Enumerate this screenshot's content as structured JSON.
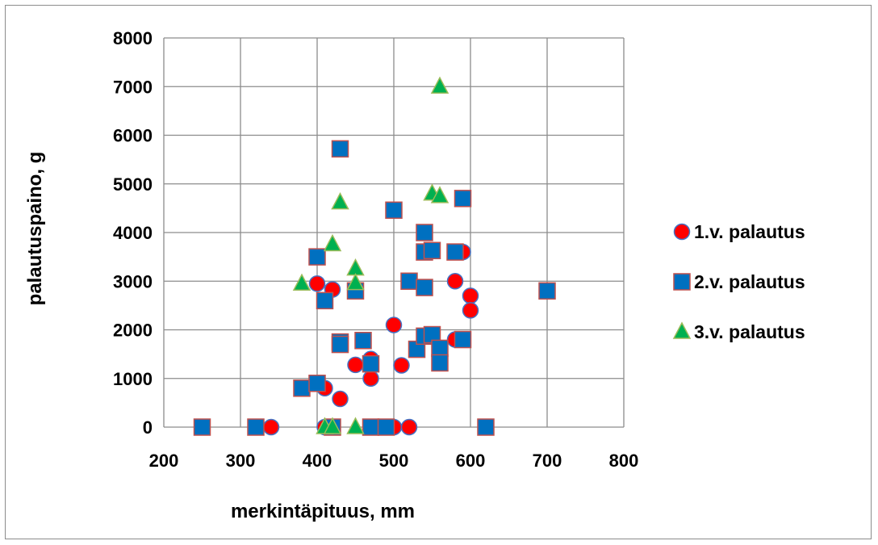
{
  "chart_data": {
    "type": "scatter",
    "title": "",
    "xlabel": "merkintäpituus, mm",
    "ylabel": "palautuspaino, g",
    "xlim": [
      200,
      800
    ],
    "ylim": [
      0,
      8000
    ],
    "xticks": [
      200,
      300,
      400,
      500,
      600,
      700,
      800
    ],
    "yticks": [
      0,
      1000,
      2000,
      3000,
      4000,
      5000,
      6000,
      7000,
      8000
    ],
    "grid": true,
    "legend_position": "right",
    "series": [
      {
        "name": "1.v. palautus",
        "marker": "circle",
        "color": "#ff0000",
        "edge_color": "#4472c4",
        "points": [
          [
            340,
            0
          ],
          [
            400,
            2950
          ],
          [
            410,
            800
          ],
          [
            410,
            0
          ],
          [
            415,
            0
          ],
          [
            420,
            2830
          ],
          [
            430,
            580
          ],
          [
            450,
            1280
          ],
          [
            470,
            1000
          ],
          [
            470,
            1400
          ],
          [
            500,
            2100
          ],
          [
            500,
            0
          ],
          [
            490,
            0
          ],
          [
            510,
            1270
          ],
          [
            520,
            0
          ],
          [
            580,
            3000
          ],
          [
            580,
            1800
          ],
          [
            590,
            3600
          ],
          [
            600,
            2700
          ],
          [
            600,
            2400
          ]
        ]
      },
      {
        "name": "2.v. palautus",
        "marker": "square",
        "color": "#0070c0",
        "edge_color": "#c0504d",
        "points": [
          [
            250,
            0
          ],
          [
            320,
            0
          ],
          [
            380,
            800
          ],
          [
            400,
            900
          ],
          [
            400,
            3500
          ],
          [
            410,
            2600
          ],
          [
            420,
            0
          ],
          [
            430,
            5720
          ],
          [
            430,
            1750
          ],
          [
            430,
            1700
          ],
          [
            450,
            2800
          ],
          [
            460,
            1780
          ],
          [
            470,
            1300
          ],
          [
            470,
            0
          ],
          [
            490,
            0
          ],
          [
            500,
            4460
          ],
          [
            520,
            3000
          ],
          [
            530,
            1600
          ],
          [
            540,
            4000
          ],
          [
            540,
            3600
          ],
          [
            540,
            2870
          ],
          [
            540,
            1870
          ],
          [
            550,
            1900
          ],
          [
            550,
            3630
          ],
          [
            560,
            1620
          ],
          [
            560,
            1320
          ],
          [
            580,
            3600
          ],
          [
            590,
            4700
          ],
          [
            590,
            1800
          ],
          [
            620,
            0
          ],
          [
            700,
            2800
          ]
        ]
      },
      {
        "name": "3.v. palautus",
        "marker": "triangle",
        "color": "#00b050",
        "edge_color": "#9bbb59",
        "points": [
          [
            380,
            2950
          ],
          [
            410,
            0
          ],
          [
            420,
            0
          ],
          [
            420,
            3760
          ],
          [
            430,
            4620
          ],
          [
            450,
            0
          ],
          [
            450,
            3260
          ],
          [
            450,
            2960
          ],
          [
            550,
            4800
          ],
          [
            560,
            4750
          ],
          [
            560,
            7000
          ]
        ]
      }
    ]
  }
}
